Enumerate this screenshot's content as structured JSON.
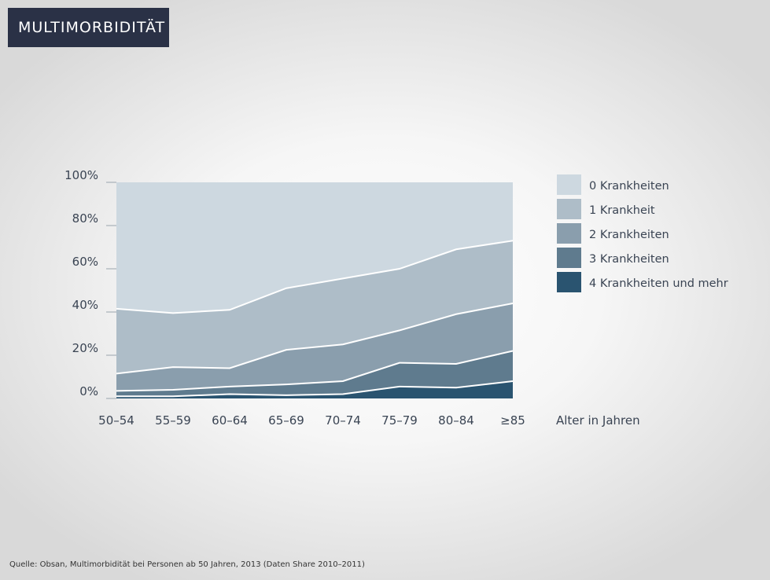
{
  "header": {
    "title": "MULTIMORBIDITÄT"
  },
  "source": "Quelle: Obsan, Multimorbidität bei Personen ab 50 Jahren, 2013 (Daten Share 2010–2011)",
  "colors": {
    "0 Krankheiten": "#cdd8e0",
    "1 Krankheit": "#aebdc8",
    "2 Krankheiten": "#8a9ead",
    "3 Krankheiten": "#5f7b8e",
    "4 Krankheiten und mehr": "#2a5470"
  },
  "chart_data": {
    "type": "area",
    "stacked": true,
    "categories": [
      "50–54",
      "55–59",
      "60–64",
      "65–69",
      "70–74",
      "75–79",
      "80–84",
      "≥85"
    ],
    "xlabel": "Alter in Jahren",
    "ylabel": "",
    "ylim": [
      0,
      100
    ],
    "yticks": [
      "0%",
      "20%",
      "40%",
      "60%",
      "80%",
      "100%"
    ],
    "legend": "right",
    "series": [
      {
        "name": "4 Krankheiten und mehr",
        "values": [
          1,
          1,
          2,
          1.5,
          2,
          5.5,
          5,
          8
        ]
      },
      {
        "name": "3 Krankheiten",
        "values": [
          2.5,
          3,
          3.5,
          5,
          6,
          11,
          11,
          14
        ]
      },
      {
        "name": "2 Krankheiten",
        "values": [
          8,
          10.5,
          8.5,
          16,
          17,
          15,
          23,
          22
        ]
      },
      {
        "name": "1 Krankheit",
        "values": [
          30,
          25,
          27,
          28.5,
          30.5,
          28.5,
          30,
          29
        ]
      },
      {
        "name": "0 Krankheiten",
        "values": [
          58.5,
          60.5,
          59,
          49,
          44.5,
          40,
          31,
          27
        ]
      }
    ]
  }
}
